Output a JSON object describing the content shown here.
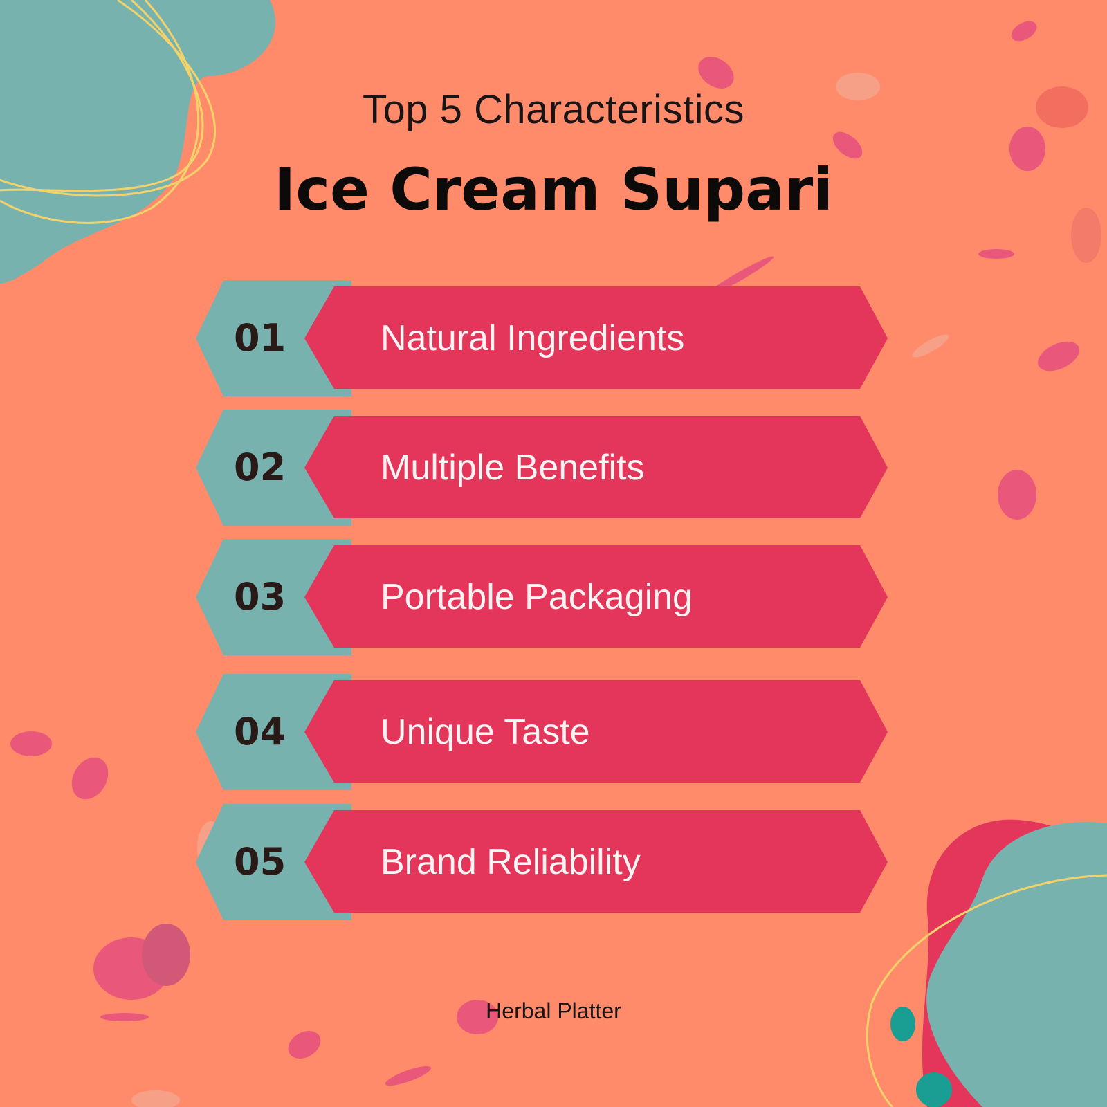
{
  "header": {
    "subtitle": "Top 5 Characteristics",
    "title": "Ice Cream Supari"
  },
  "items": [
    {
      "number": "01",
      "label": "Natural Ingredients"
    },
    {
      "number": "02",
      "label": "Multiple Benefits"
    },
    {
      "number": "03",
      "label": "Portable Packaging"
    },
    {
      "number": "04",
      "label": "Unique Taste"
    },
    {
      "number": "05",
      "label": "Brand Reliability"
    }
  ],
  "footer": {
    "brand": "Herbal Platter"
  },
  "colors": {
    "background": "#FF8B6B",
    "teal": "#78B2AE",
    "crimson": "#E3365A",
    "number_text": "#2A1A17",
    "label_text": "#FDF3F3"
  }
}
